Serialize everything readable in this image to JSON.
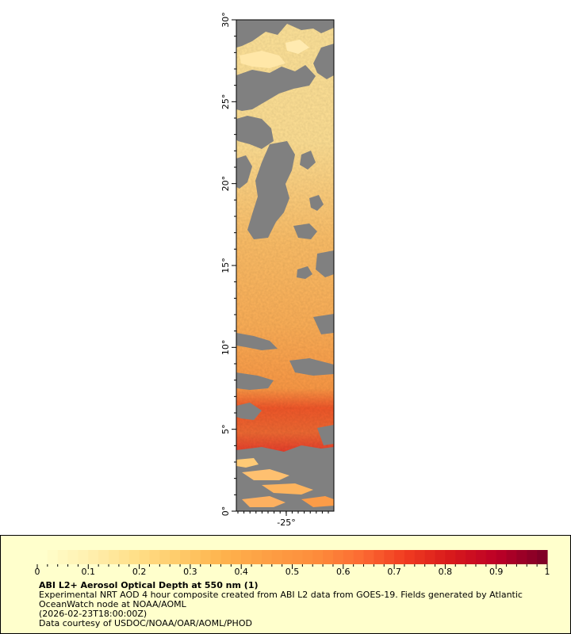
{
  "map": {
    "lat_ticks": [
      "0°",
      "5°",
      "10°",
      "15°",
      "20°",
      "25°",
      "30°"
    ],
    "lon_ticks": [
      "-25°"
    ],
    "colors": {
      "land_nodata": "#808080",
      "light_gray": "#b4b4b4"
    }
  },
  "legend": {
    "title": "ABI L2+ Aerosol Optical Depth at 550 nm (1)",
    "line1": "Experimental NRT AOD 4 hour composite created from ABI L2 data from GOES-19. Fields generated by Atlantic",
    "line2": "OceanWatch node at NOAA/AOML",
    "line3": "(2026-02-23T18:00:00Z)",
    "line4": "Data courtesy of USDOC/NOAA/OAR/AOML/PHOD",
    "min": 0,
    "max": 1,
    "tick_labels": [
      "0",
      "0.1",
      "0.2",
      "0.3",
      "0.4",
      "0.5",
      "0.6",
      "0.7",
      "0.8",
      "0.9",
      "1"
    ],
    "colorscale": [
      "#ffffcc",
      "#fff0b0",
      "#ffe08a",
      "#fecb6a",
      "#feb24c",
      "#fd9e43",
      "#fd8d3c",
      "#fc6c33",
      "#f03b20",
      "#d7191c",
      "#bd0026",
      "#800026"
    ]
  }
}
